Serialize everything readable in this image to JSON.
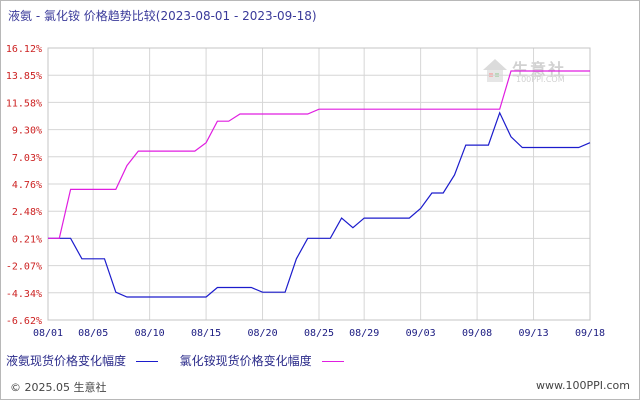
{
  "title": "液氨 - 氯化铵 价格趋势比较(2023-08-01 - 2023-09-18)",
  "watermark": {
    "brand": "生意社",
    "url": "100PPI.COM"
  },
  "legend": [
    {
      "label": "液氨现货价格变化幅度",
      "color": "#1c1ccc"
    },
    {
      "label": "氯化铵现货价格变化幅度",
      "color": "#e01ee0"
    }
  ],
  "footer": {
    "left": "© 2025.05 生意社",
    "right": "www.100PPI.com"
  },
  "chart_data": {
    "type": "line",
    "ylim": [
      -6.62,
      16.12
    ],
    "y_ticks": [
      "16.12%",
      "13.85%",
      "11.58%",
      "9.30%",
      "7.03%",
      "4.76%",
      "2.48%",
      "0.21%",
      "-2.07%",
      "-4.34%",
      "-6.62%"
    ],
    "x_ticks": [
      "08/01",
      "08/05",
      "08/10",
      "08/15",
      "08/20",
      "08/25",
      "08/29",
      "09/03",
      "09/08",
      "09/13",
      "09/18"
    ],
    "series": [
      {
        "name": "液氨现货价格变化幅度",
        "color": "#1c1ccc",
        "points": [
          [
            "08/01",
            0.21
          ],
          [
            "08/02",
            0.21
          ],
          [
            "08/03",
            0.21
          ],
          [
            "08/04",
            -1.5
          ],
          [
            "08/05",
            -1.5
          ],
          [
            "08/06",
            -1.5
          ],
          [
            "08/07",
            -4.3
          ],
          [
            "08/08",
            -4.7
          ],
          [
            "08/09",
            -4.7
          ],
          [
            "08/10",
            -4.7
          ],
          [
            "08/11",
            -4.7
          ],
          [
            "08/12",
            -4.7
          ],
          [
            "08/13",
            -4.7
          ],
          [
            "08/14",
            -4.7
          ],
          [
            "08/15",
            -4.7
          ],
          [
            "08/16",
            -3.9
          ],
          [
            "08/17",
            -3.9
          ],
          [
            "08/18",
            -3.9
          ],
          [
            "08/19",
            -3.9
          ],
          [
            "08/20",
            -4.3
          ],
          [
            "08/21",
            -4.3
          ],
          [
            "08/22",
            -4.3
          ],
          [
            "08/23",
            -1.5
          ],
          [
            "08/24",
            0.21
          ],
          [
            "08/25",
            0.21
          ],
          [
            "08/26",
            0.21
          ],
          [
            "08/27",
            1.9
          ],
          [
            "08/28",
            1.1
          ],
          [
            "08/29",
            1.9
          ],
          [
            "08/30",
            1.9
          ],
          [
            "08/31",
            1.9
          ],
          [
            "09/01",
            1.9
          ],
          [
            "09/02",
            1.9
          ],
          [
            "09/03",
            2.7
          ],
          [
            "09/04",
            4.0
          ],
          [
            "09/05",
            4.0
          ],
          [
            "09/06",
            5.5
          ],
          [
            "09/07",
            8.0
          ],
          [
            "09/08",
            8.0
          ],
          [
            "09/09",
            8.0
          ],
          [
            "09/10",
            10.7
          ],
          [
            "09/11",
            8.7
          ],
          [
            "09/12",
            7.8
          ],
          [
            "09/13",
            7.8
          ],
          [
            "09/14",
            7.8
          ],
          [
            "09/15",
            7.8
          ],
          [
            "09/16",
            7.8
          ],
          [
            "09/17",
            7.8
          ],
          [
            "09/18",
            8.2
          ]
        ]
      },
      {
        "name": "氯化铵现货价格变化幅度",
        "color": "#e01ee0",
        "points": [
          [
            "08/01",
            0.21
          ],
          [
            "08/02",
            0.21
          ],
          [
            "08/03",
            4.3
          ],
          [
            "08/04",
            4.3
          ],
          [
            "08/05",
            4.3
          ],
          [
            "08/06",
            4.3
          ],
          [
            "08/07",
            4.3
          ],
          [
            "08/08",
            6.3
          ],
          [
            "08/09",
            7.5
          ],
          [
            "08/10",
            7.5
          ],
          [
            "08/11",
            7.5
          ],
          [
            "08/12",
            7.5
          ],
          [
            "08/13",
            7.5
          ],
          [
            "08/14",
            7.5
          ],
          [
            "08/15",
            8.2
          ],
          [
            "08/16",
            10.0
          ],
          [
            "08/17",
            10.0
          ],
          [
            "08/18",
            10.6
          ],
          [
            "08/19",
            10.6
          ],
          [
            "08/20",
            10.6
          ],
          [
            "08/21",
            10.6
          ],
          [
            "08/22",
            10.6
          ],
          [
            "08/23",
            10.6
          ],
          [
            "08/24",
            10.6
          ],
          [
            "08/25",
            11.0
          ],
          [
            "08/26",
            11.0
          ],
          [
            "08/27",
            11.0
          ],
          [
            "08/28",
            11.0
          ],
          [
            "08/29",
            11.0
          ],
          [
            "08/30",
            11.0
          ],
          [
            "08/31",
            11.0
          ],
          [
            "09/01",
            11.0
          ],
          [
            "09/02",
            11.0
          ],
          [
            "09/03",
            11.0
          ],
          [
            "09/04",
            11.0
          ],
          [
            "09/05",
            11.0
          ],
          [
            "09/06",
            11.0
          ],
          [
            "09/07",
            11.0
          ],
          [
            "09/08",
            11.0
          ],
          [
            "09/09",
            11.0
          ],
          [
            "09/10",
            11.0
          ],
          [
            "09/11",
            14.2
          ],
          [
            "09/12",
            14.2
          ],
          [
            "09/13",
            14.2
          ],
          [
            "09/14",
            14.2
          ],
          [
            "09/15",
            14.2
          ],
          [
            "09/16",
            14.2
          ],
          [
            "09/17",
            14.2
          ],
          [
            "09/18",
            14.2
          ]
        ]
      }
    ]
  }
}
